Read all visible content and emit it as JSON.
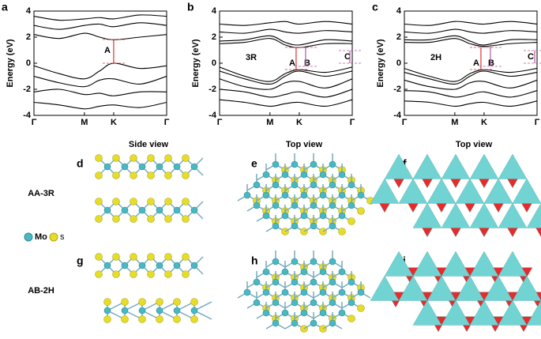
{
  "chart_data": [
    {
      "type": "line",
      "panel": "a",
      "ylabel": "Energy (eV)",
      "x": [
        0,
        0.5,
        1,
        1.3,
        1.58,
        2.1,
        2.63
      ],
      "xlim": [
        0,
        2.63
      ],
      "xticks": [
        {
          "value": 0,
          "label": "Γ"
        },
        {
          "value": 1,
          "label": "M"
        },
        {
          "value": 1.58,
          "label": "K"
        },
        {
          "value": 2.63,
          "label": "Γ"
        }
      ],
      "ylim": [
        -4,
        4
      ],
      "yticks": [
        -4,
        -2,
        0,
        2,
        4
      ],
      "annotations": [
        "A"
      ],
      "series": [
        {
          "color": "#000000",
          "values": [
            2.2,
            1.9,
            2.3,
            2.0,
            1.8,
            2.0,
            2.2
          ]
        },
        {
          "color": "#000000",
          "values": [
            2.9,
            2.6,
            2.9,
            3.0,
            2.8,
            3.1,
            2.9
          ]
        },
        {
          "color": "#000000",
          "values": [
            3.6,
            3.3,
            3.4,
            3.5,
            3.4,
            3.7,
            3.6
          ]
        },
        {
          "color": "#000000",
          "values": [
            -0.2,
            -0.8,
            -1.2,
            -0.6,
            0.0,
            -0.4,
            -0.2
          ]
        },
        {
          "color": "#000000",
          "values": [
            -1.0,
            -1.5,
            -1.8,
            -1.3,
            -1.2,
            -1.6,
            -1.0
          ]
        },
        {
          "color": "#000000",
          "values": [
            -2.2,
            -2.0,
            -2.4,
            -2.3,
            -2.5,
            -2.2,
            -2.2
          ]
        },
        {
          "color": "#000000",
          "values": [
            -3.0,
            -3.2,
            -3.5,
            -3.3,
            -3.2,
            -3.4,
            -3.0
          ]
        }
      ]
    },
    {
      "type": "line",
      "panel": "b",
      "ylabel": "Energy (eV)",
      "x": [
        0,
        0.5,
        1,
        1.3,
        1.58,
        2.1,
        2.63
      ],
      "xlim": [
        0,
        2.63
      ],
      "xticks": [
        {
          "value": 0,
          "label": "Γ"
        },
        {
          "value": 1,
          "label": "M"
        },
        {
          "value": 1.58,
          "label": "K"
        },
        {
          "value": 2.63,
          "label": "Γ"
        }
      ],
      "ylim": [
        -4,
        4
      ],
      "yticks": [
        -4,
        -2,
        0,
        2,
        4
      ],
      "annotations": [
        "3R",
        "A",
        "B",
        "C"
      ],
      "series": [
        {
          "color": "#000000",
          "values": [
            1.5,
            1.6,
            1.9,
            1.4,
            1.2,
            1.5,
            1.5
          ]
        },
        {
          "color": "#000000",
          "values": [
            1.7,
            1.8,
            2.1,
            1.6,
            1.4,
            1.8,
            1.7
          ]
        },
        {
          "color": "#000000",
          "values": [
            2.4,
            2.3,
            2.6,
            2.4,
            2.3,
            2.5,
            2.4
          ]
        },
        {
          "color": "#000000",
          "values": [
            3.0,
            2.9,
            3.1,
            3.2,
            3.0,
            3.2,
            3.0
          ]
        },
        {
          "color": "#000000",
          "values": [
            -0.3,
            -1.0,
            -1.4,
            -0.8,
            -0.5,
            -0.7,
            -0.3
          ]
        },
        {
          "color": "#000000",
          "values": [
            -0.6,
            -1.2,
            -1.6,
            -1.0,
            -0.6,
            -1.0,
            -0.6
          ]
        },
        {
          "color": "#000000",
          "values": [
            -1.2,
            -1.8,
            -2.0,
            -1.5,
            -1.4,
            -1.9,
            -1.2
          ]
        },
        {
          "color": "#000000",
          "values": [
            -2.0,
            -2.2,
            -2.6,
            -2.4,
            -2.2,
            -2.6,
            -2.0
          ]
        },
        {
          "color": "#000000",
          "values": [
            -2.8,
            -3.0,
            -3.3,
            -3.1,
            -3.0,
            -3.3,
            -2.8
          ]
        }
      ]
    },
    {
      "type": "line",
      "panel": "c",
      "ylabel": "Energy (eV)",
      "x": [
        0,
        0.5,
        1,
        1.3,
        1.58,
        2.1,
        2.63
      ],
      "xlim": [
        0,
        2.63
      ],
      "xticks": [
        {
          "value": 0,
          "label": "Γ"
        },
        {
          "value": 1,
          "label": "M"
        },
        {
          "value": 1.58,
          "label": "K"
        },
        {
          "value": 2.63,
          "label": "Γ"
        }
      ],
      "ylim": [
        -4,
        4
      ],
      "yticks": [
        -4,
        -2,
        0,
        2,
        4
      ],
      "annotations": [
        "2H",
        "A",
        "B",
        "C"
      ],
      "series": [
        {
          "color": "#000000",
          "values": [
            1.6,
            1.6,
            1.9,
            1.5,
            1.3,
            1.5,
            1.6
          ]
        },
        {
          "color": "#000000",
          "values": [
            1.8,
            1.8,
            2.1,
            1.7,
            1.4,
            1.8,
            1.8
          ]
        },
        {
          "color": "#000000",
          "values": [
            2.4,
            2.3,
            2.6,
            2.4,
            2.3,
            2.5,
            2.4
          ]
        },
        {
          "color": "#000000",
          "values": [
            3.0,
            2.9,
            3.2,
            3.1,
            3.0,
            3.2,
            3.0
          ]
        },
        {
          "color": "#000000",
          "values": [
            -0.4,
            -1.0,
            -1.4,
            -0.8,
            -0.5,
            -0.7,
            -0.4
          ]
        },
        {
          "color": "#000000",
          "values": [
            -0.7,
            -1.2,
            -1.6,
            -1.0,
            -0.6,
            -1.0,
            -0.7
          ]
        },
        {
          "color": "#000000",
          "values": [
            -1.3,
            -1.8,
            -2.0,
            -1.5,
            -1.4,
            -1.9,
            -1.3
          ]
        },
        {
          "color": "#000000",
          "values": [
            -2.1,
            -2.2,
            -2.6,
            -2.4,
            -2.2,
            -2.6,
            -2.1
          ]
        },
        {
          "color": "#000000",
          "values": [
            -2.9,
            -3.0,
            -3.3,
            -3.1,
            -3.0,
            -3.3,
            -2.9
          ]
        }
      ]
    }
  ],
  "structures": {
    "letters": [
      "d",
      "e",
      "f",
      "g",
      "h",
      "i"
    ],
    "column_titles": [
      "Side view",
      "Top view",
      "Top view"
    ],
    "row_labels": [
      "AA-3R",
      "AB-2H"
    ],
    "legend": [
      "Mo",
      "s"
    ]
  }
}
